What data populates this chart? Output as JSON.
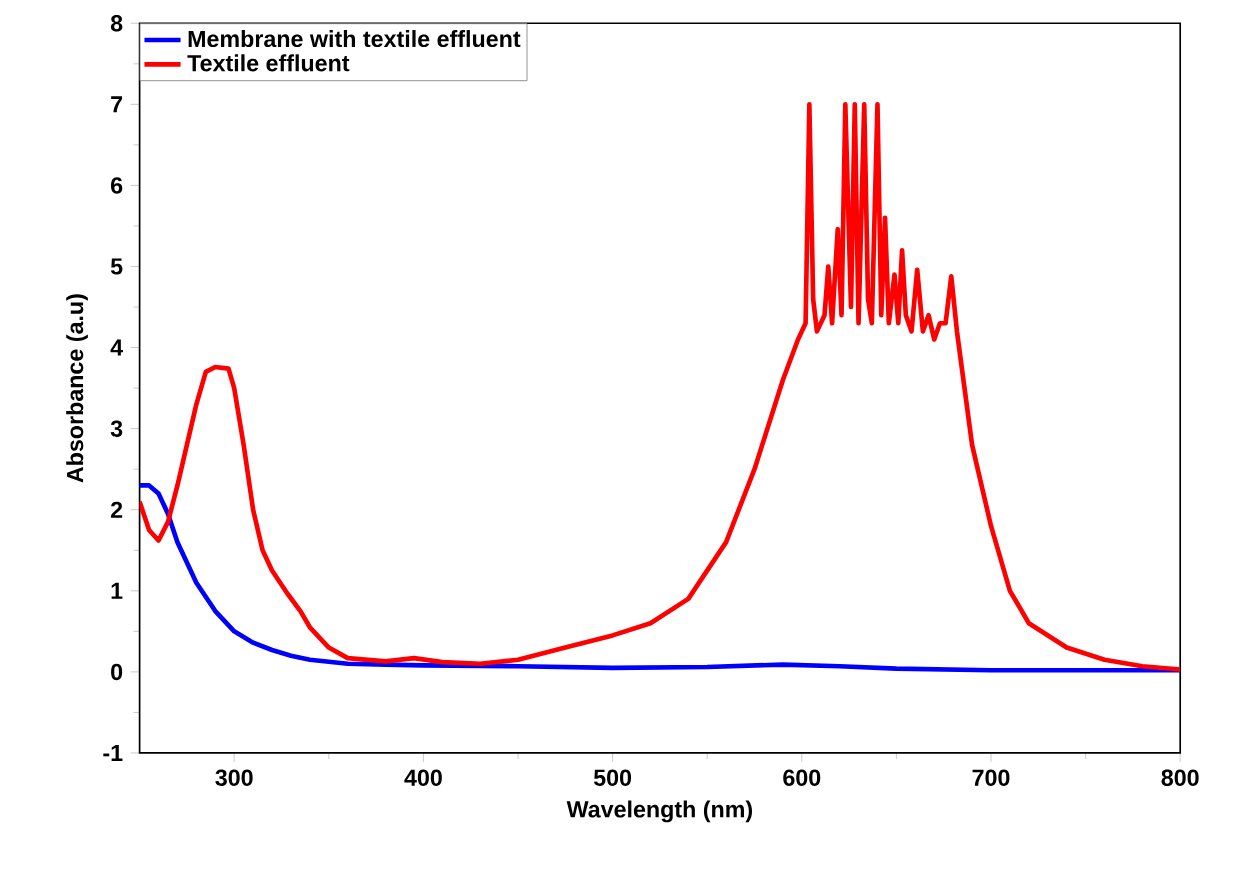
{
  "chart_data": {
    "type": "line",
    "xlabel": "Wavelength (nm)",
    "ylabel": "Absorbance (a.u)",
    "xlim": [
      250,
      800
    ],
    "ylim": [
      -1,
      8
    ],
    "xticks": [
      300,
      400,
      500,
      600,
      700,
      800
    ],
    "yticks": [
      -1,
      0,
      1,
      2,
      3,
      4,
      5,
      6,
      7,
      8
    ],
    "legend": "top left",
    "grid": false,
    "line_style": "solid",
    "series": [
      {
        "name": "Membrane with textile effluent",
        "color": "#0000ff",
        "x": [
          250,
          255,
          260,
          265,
          270,
          280,
          290,
          300,
          310,
          320,
          330,
          340,
          360,
          380,
          400,
          450,
          500,
          550,
          590,
          620,
          650,
          700,
          750,
          800
        ],
        "values": [
          2.3,
          2.3,
          2.2,
          1.95,
          1.6,
          1.1,
          0.75,
          0.5,
          0.36,
          0.27,
          0.2,
          0.15,
          0.1,
          0.09,
          0.08,
          0.07,
          0.05,
          0.06,
          0.09,
          0.07,
          0.04,
          0.02,
          0.02,
          0.02
        ]
      },
      {
        "name": "Textile effluent",
        "color": "#ff0000",
        "x": [
          250,
          255,
          260,
          265,
          270,
          275,
          280,
          285,
          290,
          297,
          300,
          305,
          310,
          315,
          320,
          328,
          335,
          340,
          350,
          360,
          380,
          395,
          410,
          430,
          450,
          475,
          500,
          520,
          540,
          560,
          575,
          590,
          598,
          602,
          604,
          606,
          608,
          612,
          614,
          616,
          619,
          621,
          623,
          626,
          628,
          630,
          633,
          635,
          637,
          640,
          642,
          644,
          646,
          649,
          651,
          653,
          655,
          658,
          661,
          664,
          667,
          670,
          673,
          676,
          679,
          682,
          686,
          690,
          700,
          710,
          720,
          740,
          760,
          780,
          800
        ],
        "values": [
          2.1,
          1.75,
          1.62,
          1.85,
          2.3,
          2.8,
          3.3,
          3.7,
          3.76,
          3.74,
          3.5,
          2.8,
          2.0,
          1.5,
          1.25,
          0.97,
          0.75,
          0.55,
          0.3,
          0.17,
          0.13,
          0.17,
          0.12,
          0.1,
          0.15,
          0.3,
          0.45,
          0.6,
          0.9,
          1.6,
          2.5,
          3.6,
          4.1,
          4.3,
          7.0,
          4.6,
          4.2,
          4.4,
          5.0,
          4.3,
          5.46,
          4.4,
          7.0,
          4.5,
          7.0,
          4.3,
          7.0,
          4.6,
          4.3,
          7.0,
          4.4,
          5.6,
          4.3,
          4.9,
          4.3,
          5.2,
          4.4,
          4.2,
          4.96,
          4.2,
          4.4,
          4.1,
          4.3,
          4.3,
          4.88,
          4.2,
          3.5,
          2.8,
          1.8,
          1.0,
          0.6,
          0.3,
          0.15,
          0.07,
          0.03
        ]
      }
    ]
  }
}
